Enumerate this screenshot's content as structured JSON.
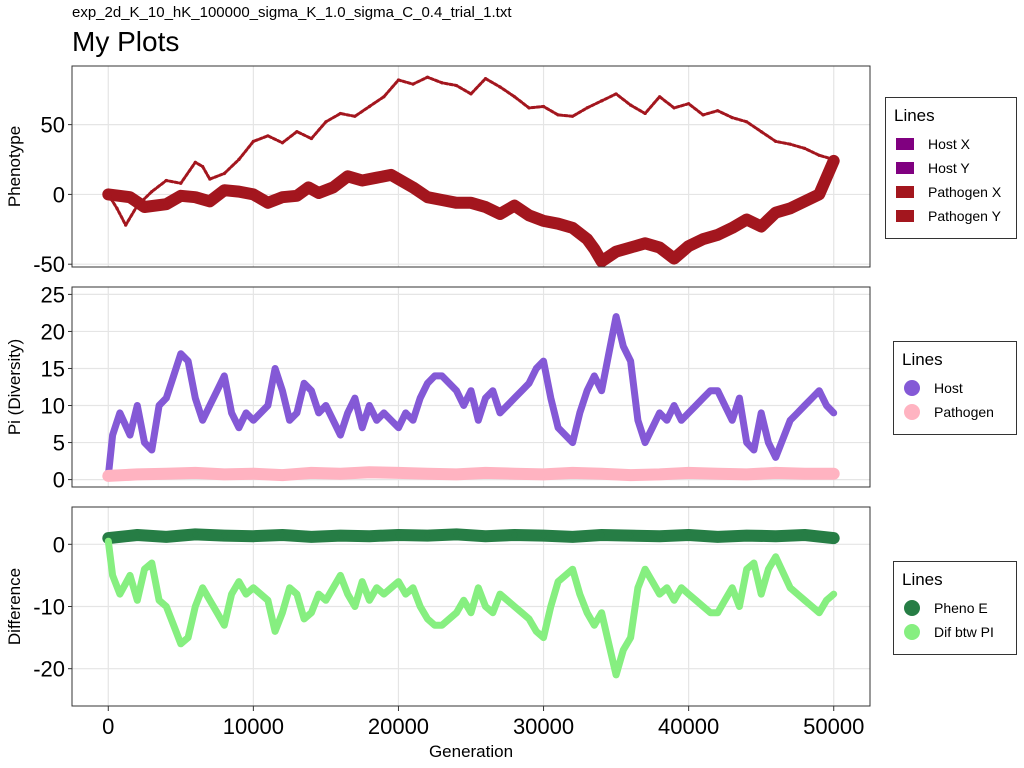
{
  "page": {
    "subtitle": "exp_2d_K_10_hK_100000_sigma_K_1.0_sigma_C_0.4_trial_1.txt",
    "title": "My Plots"
  },
  "chart_data": [
    {
      "type": "line",
      "panel": "phenotype",
      "ylabel": "Phenotype",
      "xlabel": "",
      "xlim": [
        -2500,
        52500
      ],
      "ylim": [
        -52,
        92
      ],
      "yticks": [
        -50,
        0,
        50
      ],
      "xticks": [
        0,
        10000,
        20000,
        30000,
        40000,
        50000
      ],
      "grid": true,
      "legend": {
        "title": "Lines",
        "placement": "right",
        "items": [
          {
            "label": "Host X",
            "color": "#800080"
          },
          {
            "label": "Host Y",
            "color": "#800080"
          },
          {
            "label": "Pathogen X",
            "color": "#A3161E"
          },
          {
            "label": "Pathogen Y",
            "color": "#A3161E"
          }
        ]
      },
      "series": [
        {
          "name": "Pathogen X",
          "color": "#A3161E",
          "style": "thick",
          "x": [
            0,
            1500,
            2500,
            4000,
            5000,
            6000,
            7000,
            8000,
            9000,
            10000,
            11000,
            12000,
            13000,
            13800,
            14500,
            15500,
            16500,
            17500,
            18500,
            19500,
            21000,
            22000,
            23000,
            24000,
            25000,
            26000,
            27000,
            28000,
            29000,
            30000,
            31000,
            32000,
            33000,
            33500,
            34000,
            35000,
            36000,
            37000,
            38000,
            39000,
            40000,
            41000,
            42000,
            43000,
            44000,
            45000,
            46000,
            47000,
            48000,
            49000,
            50000
          ],
          "y": [
            0,
            -2,
            -9,
            -7,
            -1,
            -2,
            -5,
            3,
            2,
            0,
            -6,
            -2,
            -1,
            5,
            1,
            5,
            13,
            10,
            12,
            14,
            5,
            -2,
            -4,
            -6,
            -6,
            -9,
            -14,
            -8,
            -15,
            -19,
            -21,
            -24,
            -32,
            -39,
            -48,
            -41,
            -38,
            -35,
            -38,
            -46,
            -37,
            -32,
            -29,
            -24,
            -18,
            -23,
            -13,
            -10,
            -5,
            0,
            24
          ]
        },
        {
          "name": "Pathogen Y",
          "color": "#A3161E",
          "style": "thin",
          "x": [
            0,
            600,
            1200,
            2000,
            3000,
            4000,
            5000,
            6000,
            6500,
            7000,
            8000,
            9000,
            10000,
            11000,
            12000,
            13000,
            14000,
            15000,
            16000,
            17000,
            18000,
            19000,
            20000,
            21000,
            22000,
            23000,
            24000,
            25000,
            26000,
            27000,
            28000,
            29000,
            30000,
            31000,
            32000,
            33000,
            34000,
            35000,
            36000,
            37000,
            38000,
            39000,
            40000,
            41000,
            42000,
            43000,
            44000,
            45000,
            46000,
            47000,
            48000,
            49000,
            50000
          ],
          "y": [
            0,
            -10,
            -22,
            -8,
            2,
            10,
            8,
            23,
            20,
            11,
            15,
            25,
            38,
            42,
            37,
            45,
            40,
            52,
            58,
            56,
            63,
            70,
            82,
            79,
            84,
            80,
            78,
            72,
            83,
            77,
            70,
            62,
            63,
            57,
            56,
            62,
            67,
            72,
            64,
            58,
            70,
            62,
            65,
            57,
            60,
            55,
            52,
            45,
            38,
            36,
            33,
            28,
            25
          ]
        }
      ]
    },
    {
      "type": "scatter",
      "panel": "diversity",
      "ylabel": "Pi (Diversity)",
      "xlabel": "",
      "xlim": [
        -2500,
        52500
      ],
      "ylim": [
        -1,
        26
      ],
      "yticks": [
        0,
        5,
        10,
        15,
        20,
        25
      ],
      "xticks": [
        0,
        10000,
        20000,
        30000,
        40000,
        50000
      ],
      "grid": true,
      "legend": {
        "title": "Lines",
        "placement": "right",
        "items": [
          {
            "label": "Host",
            "color": "#8459D6"
          },
          {
            "label": "Pathogen",
            "color": "#FFB3C1"
          }
        ]
      },
      "series": [
        {
          "name": "Host",
          "color": "#8459D6",
          "x": [
            0,
            300,
            800,
            1500,
            2000,
            2500,
            3000,
            3500,
            4000,
            4500,
            5000,
            5500,
            6000,
            6500,
            7000,
            7500,
            8000,
            8500,
            9000,
            9500,
            10000,
            11000,
            11500,
            12000,
            12500,
            13000,
            13500,
            14000,
            14500,
            15000,
            16000,
            16500,
            17000,
            17500,
            18000,
            18500,
            19000,
            19500,
            20000,
            20500,
            21000,
            21500,
            22000,
            22500,
            23000,
            24000,
            24500,
            25000,
            25500,
            26000,
            26500,
            27000,
            27500,
            28000,
            28500,
            29000,
            29500,
            30000,
            30500,
            31000,
            32000,
            32500,
            33000,
            33500,
            34000,
            34500,
            35000,
            35500,
            36000,
            36500,
            37000,
            37500,
            38000,
            38500,
            39000,
            39500,
            40000,
            40500,
            41000,
            41500,
            42000,
            42500,
            43000,
            43500,
            44000,
            44500,
            45000,
            45500,
            46000,
            47000,
            47500,
            48000,
            48500,
            49000,
            49500,
            50000
          ],
          "y": [
            0.5,
            6,
            9,
            6,
            10,
            5,
            4,
            10,
            11,
            14,
            17,
            16,
            11,
            8,
            10,
            12,
            14,
            9,
            7,
            9,
            8,
            10,
            15,
            12,
            8,
            9,
            13,
            12,
            9,
            10,
            6,
            9,
            11,
            7,
            10,
            8,
            9,
            8,
            7,
            9,
            8,
            11,
            13,
            14,
            14,
            12,
            10,
            12,
            8,
            11,
            12,
            9,
            10,
            11,
            12,
            13,
            15,
            16,
            11,
            7,
            5,
            9,
            12,
            14,
            12,
            17,
            22,
            18,
            16,
            8,
            5,
            7,
            9,
            8,
            10,
            8,
            9,
            10,
            11,
            12,
            12,
            10,
            8,
            11,
            5,
            4,
            9,
            5,
            3,
            8,
            9,
            10,
            11,
            12,
            10,
            9
          ]
        },
        {
          "name": "Pathogen",
          "color": "#FFB3C1",
          "x": [
            0,
            2000,
            4000,
            6000,
            8000,
            10000,
            12000,
            14000,
            16000,
            18000,
            20000,
            22000,
            24000,
            26000,
            28000,
            30000,
            32000,
            34000,
            36000,
            38000,
            40000,
            42000,
            44000,
            46000,
            48000,
            50000
          ],
          "y": [
            0.5,
            0.7,
            0.8,
            0.9,
            0.7,
            0.8,
            0.6,
            0.9,
            0.8,
            1.0,
            0.9,
            0.8,
            0.7,
            0.9,
            0.8,
            0.7,
            0.9,
            0.8,
            0.6,
            0.7,
            0.9,
            0.8,
            0.7,
            0.9,
            0.8,
            0.8
          ]
        }
      ]
    },
    {
      "type": "scatter",
      "panel": "difference",
      "ylabel": "Difference",
      "xlabel": "Generation",
      "xlim": [
        -2500,
        52500
      ],
      "ylim": [
        -26,
        6
      ],
      "yticks": [
        -20,
        -10,
        0
      ],
      "xticks": [
        0,
        10000,
        20000,
        30000,
        40000,
        50000
      ],
      "grid": true,
      "legend": {
        "title": "Lines",
        "placement": "right",
        "items": [
          {
            "label": "Pheno E",
            "color": "#267D45"
          },
          {
            "label": "Dif btw PI",
            "color": "#86EF80"
          }
        ]
      },
      "series": [
        {
          "name": "Pheno E",
          "color": "#267D45",
          "x": [
            0,
            2000,
            4000,
            6000,
            8000,
            10000,
            12000,
            14000,
            16000,
            18000,
            20000,
            22000,
            24000,
            26000,
            28000,
            30000,
            32000,
            34000,
            36000,
            38000,
            40000,
            42000,
            44000,
            46000,
            48000,
            50000
          ],
          "y": [
            1.0,
            1.5,
            1.2,
            1.6,
            1.4,
            1.3,
            1.5,
            1.2,
            1.4,
            1.3,
            1.5,
            1.4,
            1.6,
            1.3,
            1.5,
            1.4,
            1.2,
            1.5,
            1.4,
            1.3,
            1.5,
            1.2,
            1.4,
            1.3,
            1.5,
            1.0
          ]
        },
        {
          "name": "Dif btw PI",
          "color": "#86EF80",
          "x": [
            0,
            300,
            800,
            1500,
            2000,
            2500,
            3000,
            3500,
            4000,
            4500,
            5000,
            5500,
            6000,
            6500,
            7000,
            7500,
            8000,
            8500,
            9000,
            9500,
            10000,
            11000,
            11500,
            12000,
            12500,
            13000,
            13500,
            14000,
            14500,
            15000,
            16000,
            16500,
            17000,
            17500,
            18000,
            18500,
            19000,
            19500,
            20000,
            20500,
            21000,
            21500,
            22000,
            22500,
            23000,
            24000,
            24500,
            25000,
            25500,
            26000,
            26500,
            27000,
            27500,
            28000,
            28500,
            29000,
            29500,
            30000,
            30500,
            31000,
            32000,
            32500,
            33000,
            33500,
            34000,
            34500,
            35000,
            35500,
            36000,
            36500,
            37000,
            37500,
            38000,
            38500,
            39000,
            39500,
            40000,
            40500,
            41000,
            41500,
            42000,
            42500,
            43000,
            43500,
            44000,
            44500,
            45000,
            45500,
            46000,
            47000,
            47500,
            48000,
            48500,
            49000,
            49500,
            50000
          ],
          "y": [
            0.5,
            -5,
            -8,
            -5,
            -9,
            -4,
            -3,
            -9,
            -10,
            -13,
            -16,
            -15,
            -10,
            -7,
            -9,
            -11,
            -13,
            -8,
            -6,
            -8,
            -7,
            -9,
            -14,
            -11,
            -7,
            -8,
            -12,
            -11,
            -8,
            -9,
            -5,
            -8,
            -10,
            -6,
            -9,
            -7,
            -8,
            -7,
            -6,
            -8,
            -7,
            -10,
            -12,
            -13,
            -13,
            -11,
            -9,
            -11,
            -7,
            -10,
            -11,
            -8,
            -9,
            -10,
            -11,
            -12,
            -14,
            -15,
            -10,
            -6,
            -4,
            -8,
            -11,
            -13,
            -11,
            -16,
            -21,
            -17,
            -15,
            -7,
            -4,
            -6,
            -8,
            -7,
            -9,
            -7,
            -8,
            -9,
            -10,
            -11,
            -11,
            -9,
            -7,
            -10,
            -4,
            -3,
            -8,
            -4,
            -2,
            -7,
            -8,
            -9,
            -10,
            -11,
            -9,
            -8
          ]
        }
      ]
    }
  ]
}
